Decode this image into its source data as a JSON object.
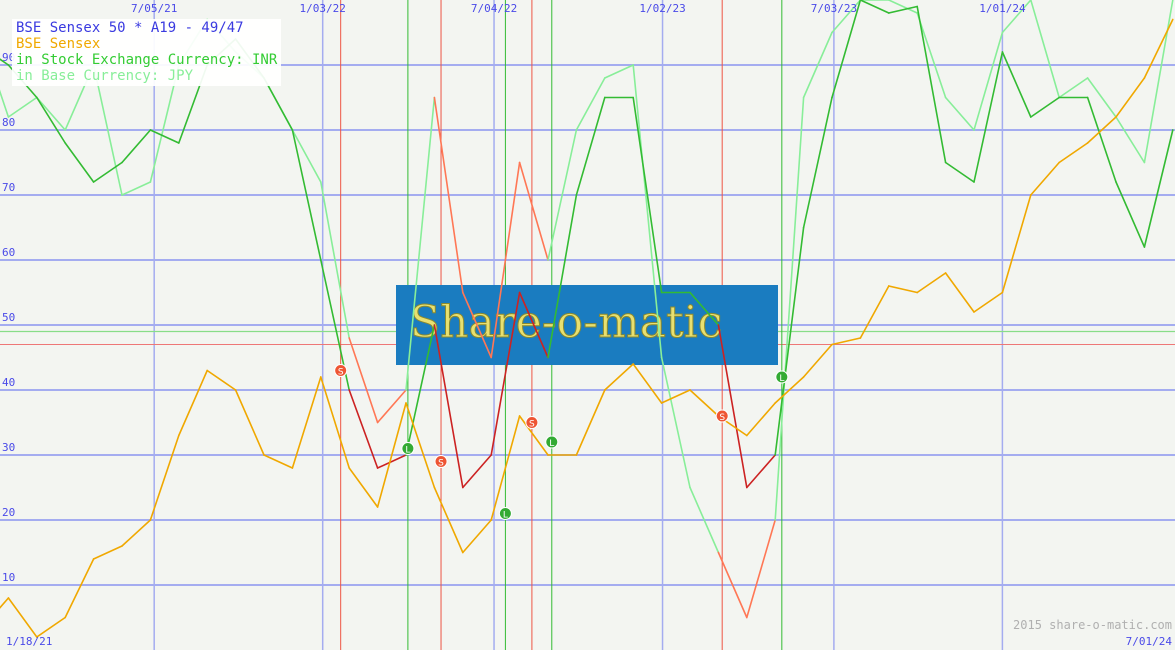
{
  "legend": {
    "title": "BSE Sensex 50 * A19 - 49/47",
    "index_name": "BSE Sensex",
    "local_currency": "in Stock Exchange Currency: INR",
    "base_currency": "in Base Currency: JPY"
  },
  "watermark": "Share-o-matic",
  "copyright": "2015 share-o-matic.com",
  "colors": {
    "index": "#f0a800",
    "inr_buy": "#33bb33",
    "inr_sell": "#cc2222",
    "jpy_buy": "#88ee99",
    "jpy_sell": "#ff7755",
    "grid": "#a4acf0",
    "buy_level": "#88dd88",
    "sell_level": "#ee7777",
    "watermark_box": "#1a7cc0"
  },
  "chart_data": {
    "type": "line",
    "title": "BSE Sensex 50 * A19 - 49/47",
    "x_start_label": "1/18/21",
    "x_end_label": "7/01/24",
    "x_tick_labels": [
      "7/05/21",
      "1/03/22",
      "7/04/22",
      "1/02/23",
      "7/03/23",
      "1/01/24"
    ],
    "x_tick_dates": [
      "2021-07-05",
      "2022-01-03",
      "2022-07-04",
      "2023-01-02",
      "2023-07-03",
      "2024-01-01"
    ],
    "y_ticks": [
      10,
      20,
      30,
      40,
      50,
      60,
      70,
      80,
      90
    ],
    "ylim": [
      0,
      100
    ],
    "grid": true,
    "legend_position": "top-left",
    "buy_level": 49,
    "sell_level": 47,
    "months": [
      "2021-01",
      "2021-02",
      "2021-03",
      "2021-04",
      "2021-05",
      "2021-06",
      "2021-07",
      "2021-08",
      "2021-09",
      "2021-10",
      "2021-11",
      "2021-12",
      "2022-01",
      "2022-02",
      "2022-03",
      "2022-04",
      "2022-05",
      "2022-06",
      "2022-07",
      "2022-08",
      "2022-09",
      "2022-10",
      "2022-11",
      "2022-12",
      "2023-01",
      "2023-02",
      "2023-03",
      "2023-04",
      "2023-05",
      "2023-06",
      "2023-07",
      "2023-08",
      "2023-09",
      "2023-10",
      "2023-11",
      "2023-12",
      "2024-01",
      "2024-02",
      "2024-03",
      "2024-04",
      "2024-05",
      "2024-06",
      "2024-07"
    ],
    "series": [
      {
        "name": "BSE Sensex",
        "values": [
          3,
          8,
          2,
          5,
          14,
          16,
          20,
          33,
          43,
          40,
          30,
          28,
          42,
          28,
          22,
          38,
          25,
          15,
          20,
          36,
          30,
          30,
          40,
          44,
          38,
          40,
          36,
          33,
          38,
          42,
          47,
          48,
          56,
          55,
          58,
          52,
          55,
          70,
          75,
          78,
          82,
          88,
          97
        ]
      },
      {
        "name": "in Stock Exchange Currency: INR",
        "values": [
          93,
          90,
          85,
          78,
          72,
          75,
          80,
          78,
          90,
          94,
          88,
          80,
          60,
          40,
          28,
          30,
          50,
          25,
          30,
          55,
          45,
          70,
          85,
          85,
          55,
          55,
          50,
          25,
          30,
          65,
          85,
          100,
          98,
          99,
          75,
          72,
          92,
          82,
          85,
          85,
          72,
          62,
          80
        ]
      },
      {
        "name": "in Base Currency: JPY",
        "values": [
          95,
          82,
          85,
          80,
          90,
          70,
          72,
          90,
          97,
          92,
          88,
          80,
          72,
          48,
          35,
          40,
          85,
          55,
          45,
          75,
          60,
          80,
          88,
          90,
          45,
          25,
          15,
          5,
          20,
          85,
          95,
          100,
          100,
          98,
          85,
          80,
          95,
          100,
          85,
          88,
          82,
          75,
          100
        ]
      }
    ],
    "signals": [
      {
        "type": "S",
        "date": "2022-01-22",
        "value": 43
      },
      {
        "type": "L",
        "date": "2022-04-03",
        "value": 31
      },
      {
        "type": "S",
        "date": "2022-05-08",
        "value": 29
      },
      {
        "type": "L",
        "date": "2022-07-16",
        "value": 21
      },
      {
        "type": "S",
        "date": "2022-08-14",
        "value": 35
      },
      {
        "type": "L",
        "date": "2022-09-05",
        "value": 32
      },
      {
        "type": "S",
        "date": "2023-03-05",
        "value": 36
      },
      {
        "type": "L",
        "date": "2023-05-08",
        "value": 42
      }
    ]
  }
}
